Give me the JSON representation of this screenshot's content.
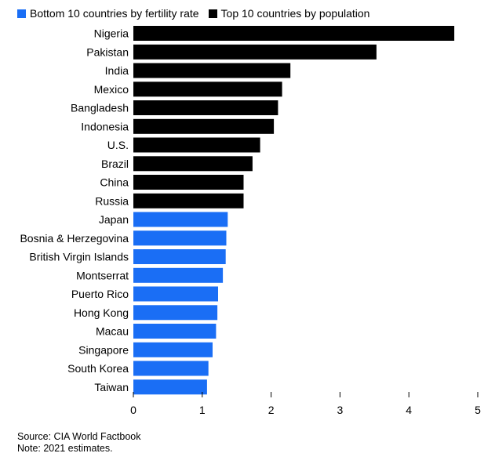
{
  "chart_data": {
    "type": "bar",
    "orientation": "horizontal",
    "categories": [
      "Nigeria",
      "Pakistan",
      "India",
      "Mexico",
      "Bangladesh",
      "Indonesia",
      "U.S.",
      "Brazil",
      "China",
      "Russia",
      "Japan",
      "Bosnia & Herzegovina",
      "British Virgin Islands",
      "Montserrat",
      "Puerto Rico",
      "Hong Kong",
      "Macau",
      "Singapore",
      "South Korea",
      "Taiwan"
    ],
    "values": [
      4.66,
      3.53,
      2.28,
      2.16,
      2.1,
      2.04,
      1.84,
      1.73,
      1.6,
      1.6,
      1.37,
      1.35,
      1.34,
      1.3,
      1.23,
      1.22,
      1.2,
      1.15,
      1.09,
      1.07
    ],
    "groups": [
      "Top 10 countries by population",
      "Top 10 countries by population",
      "Top 10 countries by population",
      "Top 10 countries by population",
      "Top 10 countries by population",
      "Top 10 countries by population",
      "Top 10 countries by population",
      "Top 10 countries by population",
      "Top 10 countries by population",
      "Top 10 countries by population",
      "Bottom 10 countries by fertility rate",
      "Bottom 10 countries by fertility rate",
      "Bottom 10 countries by fertility rate",
      "Bottom 10 countries by fertility rate",
      "Bottom 10 countries by fertility rate",
      "Bottom 10 countries by fertility rate",
      "Bottom 10 countries by fertility rate",
      "Bottom 10 countries by fertility rate",
      "Bottom 10 countries by fertility rate",
      "Bottom 10 countries by fertility rate"
    ],
    "legend": [
      {
        "name": "Bottom 10 countries by fertility rate",
        "color": "#1a6ef5"
      },
      {
        "name": "Top 10 countries by population",
        "color": "#000000"
      }
    ],
    "legend_position": "top-left",
    "xlim": [
      0,
      5
    ],
    "xticks": [
      0,
      1,
      2,
      3,
      4,
      5
    ],
    "grid": false
  },
  "footer": {
    "source": "Source: CIA World Factbook",
    "note": "Note: 2021 estimates."
  }
}
